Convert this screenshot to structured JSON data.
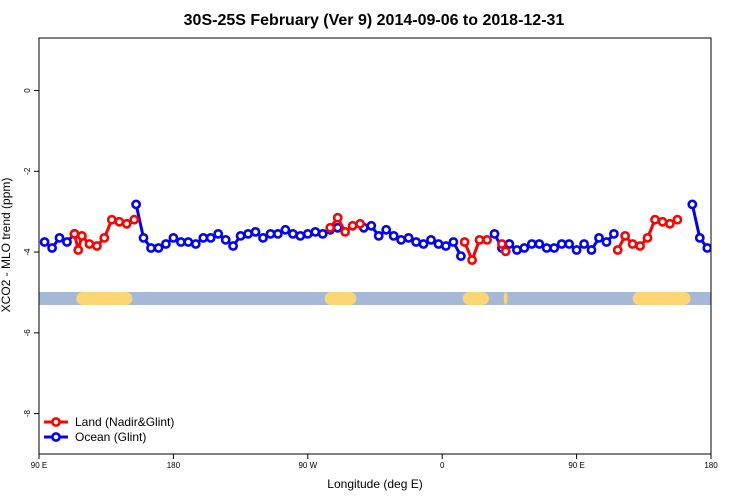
{
  "chart_data": {
    "type": "line",
    "title": "30S-25S February (Ver 9)   2014-09-06 to 2018-12-31",
    "xlabel": "Longitude (deg E)",
    "ylabel": "XCO2 - MLO trend (ppm)",
    "xlim": [
      90,
      450
    ],
    "ylim": [
      -9,
      1.3
    ],
    "x_ticks": [
      {
        "value": 90,
        "label": "90 E"
      },
      {
        "value": 162,
        "label": "180"
      },
      {
        "value": 234,
        "label": "90 W"
      },
      {
        "value": 306,
        "label": "0"
      },
      {
        "value": 378,
        "label": "90 E"
      },
      {
        "value": 450,
        "label": "180"
      }
    ],
    "y_ticks": [
      0,
      -2,
      -4,
      -6,
      -8
    ],
    "grid": false,
    "legend_position": "bottom-left",
    "colors": {
      "land": "#ff0000",
      "ocean": "#0000ff",
      "ocean_band": "#a5b8d6",
      "land_band": "#fcd672"
    },
    "band": {
      "y_center": -5.15,
      "land_segments": [
        [
          110,
          140
        ],
        [
          243,
          260
        ],
        [
          317,
          331
        ],
        [
          339,
          341
        ],
        [
          408,
          439
        ]
      ]
    },
    "series": [
      {
        "name": "Ocean (Glint)",
        "color": "#0000ff",
        "segments": [
          [
            [
              93,
              -3.75
            ],
            [
              97,
              -3.9
            ],
            [
              101,
              -3.65
            ],
            [
              105,
              -3.75
            ],
            [
              109,
              -3.55
            ]
          ],
          [
            [
              142,
              -2.82
            ],
            [
              146,
              -3.65
            ],
            [
              150,
              -3.9
            ],
            [
              154,
              -3.9
            ],
            [
              158,
              -3.8
            ],
            [
              162,
              -3.65
            ],
            [
              166,
              -3.75
            ],
            [
              170,
              -3.75
            ],
            [
              174,
              -3.8
            ],
            [
              178,
              -3.65
            ],
            [
              182,
              -3.65
            ],
            [
              186,
              -3.55
            ],
            [
              190,
              -3.7
            ],
            [
              194,
              -3.85
            ],
            [
              198,
              -3.6
            ],
            [
              202,
              -3.55
            ],
            [
              206,
              -3.5
            ],
            [
              210,
              -3.65
            ],
            [
              214,
              -3.55
            ],
            [
              218,
              -3.55
            ],
            [
              222,
              -3.45
            ],
            [
              226,
              -3.55
            ],
            [
              230,
              -3.6
            ],
            [
              234,
              -3.55
            ],
            [
              238,
              -3.5
            ],
            [
              242,
              -3.55
            ],
            [
              246,
              -3.45
            ],
            [
              250,
              -3.4
            ]
          ],
          [
            [
              264,
              -3.4
            ],
            [
              268,
              -3.35
            ],
            [
              272,
              -3.6
            ],
            [
              276,
              -3.45
            ],
            [
              280,
              -3.6
            ],
            [
              284,
              -3.7
            ],
            [
              288,
              -3.65
            ],
            [
              292,
              -3.75
            ],
            [
              296,
              -3.8
            ],
            [
              300,
              -3.7
            ],
            [
              304,
              -3.8
            ],
            [
              308,
              -3.85
            ],
            [
              312,
              -3.75
            ],
            [
              316,
              -4.1
            ]
          ],
          [
            [
              334,
              -3.55
            ],
            [
              338,
              -3.9
            ],
            [
              342,
              -3.8
            ],
            [
              346,
              -3.95
            ],
            [
              350,
              -3.9
            ],
            [
              354,
              -3.8
            ],
            [
              358,
              -3.8
            ],
            [
              362,
              -3.9
            ],
            [
              366,
              -3.9
            ],
            [
              370,
              -3.8
            ],
            [
              374,
              -3.8
            ],
            [
              378,
              -3.95
            ],
            [
              382,
              -3.8
            ],
            [
              386,
              -3.95
            ],
            [
              390,
              -3.65
            ],
            [
              394,
              -3.75
            ],
            [
              398,
              -3.55
            ]
          ],
          [
            [
              440,
              -2.82
            ],
            [
              444,
              -3.65
            ],
            [
              448,
              -3.9
            ],
            [
              452,
              -3.9
            ],
            [
              456,
              -3.8
            ],
            [
              460,
              -3.65
            ]
          ]
        ]
      },
      {
        "name": "Land (Nadir&Glint)",
        "color": "#ff0000",
        "segments": [
          [
            [
              109,
              -3.55
            ],
            [
              111,
              -3.95
            ],
            [
              113,
              -3.6
            ],
            [
              117,
              -3.8
            ],
            [
              121,
              -3.85
            ],
            [
              125,
              -3.65
            ],
            [
              129,
              -3.2
            ],
            [
              133,
              -3.25
            ],
            [
              137,
              -3.3
            ],
            [
              141,
              -3.2
            ]
          ],
          [
            [
              246,
              -3.4
            ],
            [
              250,
              -3.15
            ],
            [
              254,
              -3.5
            ],
            [
              258,
              -3.35
            ],
            [
              262,
              -3.3
            ]
          ],
          [
            [
              318,
              -3.75
            ],
            [
              322,
              -4.2
            ],
            [
              326,
              -3.7
            ],
            [
              330,
              -3.7
            ]
          ],
          [
            [
              338,
              -3.8
            ],
            [
              340,
              -3.98
            ]
          ],
          [
            [
              400,
              -3.95
            ],
            [
              404,
              -3.6
            ],
            [
              408,
              -3.8
            ],
            [
              412,
              -3.85
            ],
            [
              416,
              -3.65
            ],
            [
              420,
              -3.2
            ],
            [
              424,
              -3.25
            ],
            [
              428,
              -3.3
            ],
            [
              432,
              -3.2
            ]
          ]
        ]
      }
    ]
  }
}
